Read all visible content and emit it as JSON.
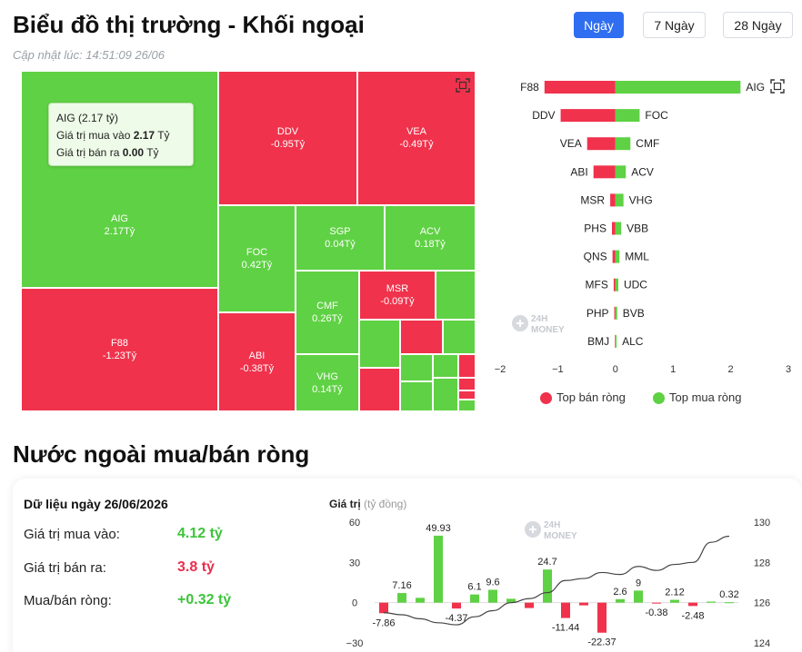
{
  "header": {
    "title": "Biểu đồ thị trường - Khối ngoại",
    "updated": "Cập nhật lúc: 14:51:09 26/06"
  },
  "range_buttons": [
    {
      "label": "Ngày",
      "active": true
    },
    {
      "label": "7 Ngày",
      "active": false
    },
    {
      "label": "28 Ngày",
      "active": false
    }
  ],
  "colors": {
    "buy": "#5fd144",
    "sell": "#f0324c",
    "accent": "#2f6ef0"
  },
  "treemap": {
    "tiles": [
      {
        "code": "AIG",
        "value": "2.17Tỷ",
        "sign": "pos"
      },
      {
        "code": "F88",
        "value": "-1.23Tỷ",
        "sign": "neg"
      },
      {
        "code": "DDV",
        "value": "-0.95Tỷ",
        "sign": "neg"
      },
      {
        "code": "VEA",
        "value": "-0.49Tỷ",
        "sign": "neg"
      },
      {
        "code": "FOC",
        "value": "0.42Tỷ",
        "sign": "pos"
      },
      {
        "code": "SGP",
        "value": "0.04Tỷ",
        "sign": "pos"
      },
      {
        "code": "ACV",
        "value": "0.18Tỷ",
        "sign": "pos"
      },
      {
        "code": "CMF",
        "value": "0.26Tỷ",
        "sign": "pos"
      },
      {
        "code": "MSR",
        "value": "-0.09Tỷ",
        "sign": "neg"
      },
      {
        "code": "ABI",
        "value": "-0.38Tỷ",
        "sign": "neg"
      },
      {
        "code": "VHG",
        "value": "0.14Tỷ",
        "sign": "pos"
      }
    ],
    "tooltip": {
      "title": "AIG (2.17 tỷ)",
      "buy_label": "Giá trị mua vào",
      "buy_value": "2.17",
      "sell_label": "Giá trị bán ra",
      "sell_value": "0.00",
      "unit": "Tỷ"
    }
  },
  "chart_data": [
    {
      "type": "bar",
      "orientation": "horizontal",
      "sell_codes": [
        "F88",
        "DDV",
        "VEA",
        "ABI",
        "MSR",
        "PHS",
        "QNS",
        "MFS",
        "PHP",
        "BMJ"
      ],
      "sell_values": [
        -1.23,
        -0.95,
        -0.49,
        -0.38,
        -0.09,
        -0.06,
        -0.05,
        -0.03,
        -0.02,
        -0.01
      ],
      "buy_codes": [
        "AIG",
        "FOC",
        "CMF",
        "ACV",
        "VHG",
        "VBB",
        "MML",
        "UDC",
        "BVB",
        "ALC"
      ],
      "buy_values": [
        2.17,
        0.42,
        0.26,
        0.18,
        0.14,
        0.1,
        0.07,
        0.05,
        0.03,
        0.02
      ],
      "x_ticks": [
        "−2",
        "−1",
        "0",
        "1",
        "2",
        "3"
      ],
      "xlim": [
        -2,
        3
      ],
      "legend": [
        "Top bán ròng",
        "Top mua ròng"
      ],
      "legend_position": "bottom"
    },
    {
      "type": "bar",
      "ylabel": "Giá trị",
      "ylabel_unit": "(tỷ đồng)",
      "y_ticks": [
        "60",
        "30",
        "0",
        "−30"
      ],
      "y2_ticks": [
        "130",
        "128",
        "126",
        "124"
      ],
      "ylim": [
        -30,
        60
      ],
      "y2lim": [
        124,
        130
      ],
      "values": [
        -7.86,
        7.16,
        3.6,
        49.93,
        -4.37,
        6.1,
        9.6,
        2.9,
        -4.0,
        24.7,
        -11.44,
        -2.0,
        -22.37,
        2.6,
        9,
        -0.38,
        2.12,
        -2.48,
        0.8,
        0.32
      ],
      "labels": [
        "-7.86",
        "7.16",
        "",
        "49.93",
        "-4.37",
        "6.1",
        "9.6",
        "",
        "",
        "24.7",
        "-11.44",
        "",
        "-22.37",
        "2.6",
        "9",
        "-0.38",
        "2.12",
        "-2.48",
        "",
        "0.32"
      ],
      "line": [
        125.5,
        125.4,
        125.2,
        125.0,
        124.9,
        125.3,
        125.6,
        126.0,
        126.2,
        126.5,
        127.1,
        127.2,
        127.5,
        127.4,
        127.8,
        127.6,
        127.9,
        128.0,
        129.0,
        129.3
      ]
    }
  ],
  "net_section": {
    "title": "Nước ngoài mua/bán ròng",
    "card_title": "Dữ liệu ngày 26/06/2026",
    "buy_label": "Giá trị mua vào:",
    "buy_value": "4.12 tỷ",
    "sell_label": "Giá trị bán ra:",
    "sell_value": "3.8 tỷ",
    "net_label": "Mua/bán ròng:",
    "net_value": "+0.32 tỷ"
  },
  "watermark": {
    "line1": "24H",
    "line2": "MONEY"
  },
  "icons": {
    "expand": "expand-icon",
    "logo": "24h-money-logo-icon"
  }
}
